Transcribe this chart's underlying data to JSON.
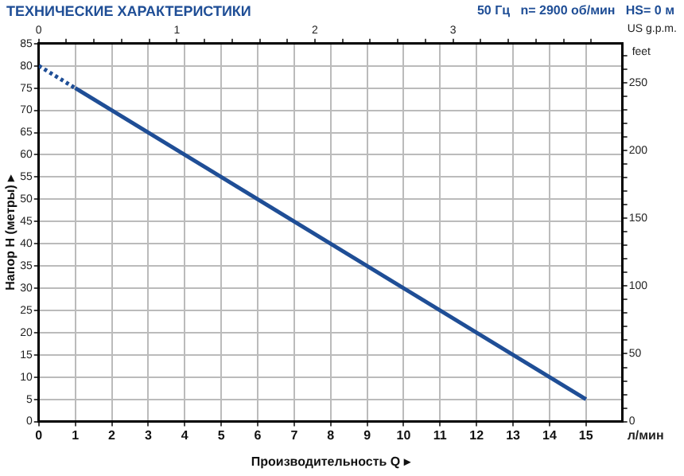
{
  "chart_data": {
    "type": "line",
    "title": "ТЕХНИЧЕСКИЕ ХАРАКТЕРИСТИКИ",
    "subtitle": "50 Гц   n= 2900 об/мин   HS= 0 м",
    "xlabel": "Производительность Q ▸",
    "ylabel": "Напор H (метры) ▸",
    "y2label": "feet",
    "x2label": "US g.p.m.",
    "annotations": [
      "л/мин"
    ],
    "series": [
      {
        "color": "#1f4e96",
        "line_style": "dotted",
        "x": [
          0,
          1
        ],
        "values": [
          80,
          75
        ]
      },
      {
        "color": "#1f4e96",
        "line_style": "solid",
        "x": [
          1,
          15
        ],
        "values": [
          75,
          5
        ]
      }
    ],
    "xlim": [
      0,
      16
    ],
    "xticks": [
      0,
      1,
      2,
      3,
      4,
      5,
      6,
      7,
      8,
      9,
      10,
      11,
      12,
      13,
      14,
      15
    ],
    "ylim": [
      0,
      85
    ],
    "yticks": [
      0,
      5,
      10,
      15,
      20,
      25,
      30,
      35,
      40,
      45,
      50,
      55,
      60,
      65,
      70,
      75,
      80,
      85
    ],
    "y2lim": [
      0,
      278.9
    ],
    "y2ticks": [
      0,
      {
        "value": 10,
        "label": null
      },
      {
        "value": 20,
        "label": null
      },
      {
        "value": 30,
        "label": null
      },
      {
        "value": 40,
        "label": null
      },
      50,
      {
        "value": 60,
        "label": null
      },
      {
        "value": 70,
        "label": null
      },
      {
        "value": 80,
        "label": null
      },
      {
        "value": 90,
        "label": null
      },
      100,
      {
        "value": 110,
        "label": null
      },
      {
        "value": 120,
        "label": null
      },
      {
        "value": 130,
        "label": null
      },
      {
        "value": 140,
        "label": null
      },
      150,
      {
        "value": 160,
        "label": null
      },
      {
        "value": 170,
        "label": null
      },
      {
        "value": 180,
        "label": null
      },
      {
        "value": 190,
        "label": null
      },
      200,
      {
        "value": 210,
        "label": null
      },
      {
        "value": 220,
        "label": null
      },
      {
        "value": 230,
        "label": null
      },
      {
        "value": 240,
        "label": null
      },
      250,
      {
        "value": 260,
        "label": null
      },
      {
        "value": 270,
        "label": null
      }
    ],
    "x2lim": [
      0,
      4.227
    ],
    "x2ticks": [
      0,
      {
        "value": 0.2,
        "label": null
      },
      {
        "value": 0.4,
        "label": null
      },
      {
        "value": 0.6,
        "label": null
      },
      {
        "value": 0.8,
        "label": null
      },
      1,
      {
        "value": 1.2,
        "label": null
      },
      {
        "value": 1.4,
        "label": null
      },
      {
        "value": 1.6,
        "label": null
      },
      {
        "value": 1.8,
        "label": null
      },
      2,
      {
        "value": 2.2,
        "label": null
      },
      {
        "value": 2.4,
        "label": null
      },
      {
        "value": 2.6,
        "label": null
      },
      {
        "value": 2.8,
        "label": null
      },
      3,
      {
        "value": 3.2,
        "label": null
      },
      {
        "value": 3.4,
        "label": null
      },
      {
        "value": 3.6,
        "label": null
      },
      {
        "value": 3.8,
        "label": null
      },
      {
        "value": 4,
        "label": null
      }
    ],
    "grid": true,
    "legend": false,
    "marker": "none"
  }
}
